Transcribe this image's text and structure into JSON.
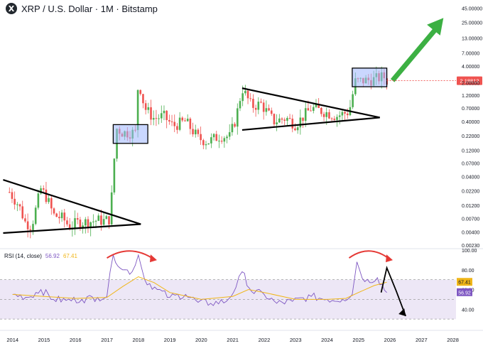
{
  "header": {
    "coin_symbol": "X",
    "title": "XRP / U.S. Dollar · 1M · Bitstamp"
  },
  "rsi_legend": {
    "label": "RSI (14, close)",
    "rsi_value": "56.92",
    "ma_value": "67.41"
  },
  "colors": {
    "up": "#26a69a",
    "up_candle": "#4caf50",
    "down": "#ef5350",
    "rsi_line": "#7e57c2",
    "rsi_ma": "#f0b619",
    "rsi_band": "#ede7f6",
    "box_fill": "#9fb7ff",
    "arrow_green": "#3cb043",
    "annotation_red": "#e53935",
    "current_price_bg": "#ef5350"
  },
  "chart_data": [
    {
      "type": "line",
      "name_hint": "price",
      "log_scale": true,
      "x_tick_labels": [
        "2014",
        "2015",
        "2016",
        "2017",
        "2018",
        "2019",
        "2020",
        "2021",
        "2022",
        "2023",
        "2024",
        "2025",
        "2026",
        "2027",
        "2028"
      ],
      "y_tick_labels": [
        "45.00000",
        "25.00000",
        "13.00000",
        "7.00000",
        "4.00000",
        "2.00000",
        "1.20000",
        "0.70000",
        "0.40000",
        "0.22000",
        "0.12000",
        "0.07000",
        "0.04000",
        "0.02200",
        "0.01200",
        "0.00700",
        "0.00400",
        "0.00230"
      ],
      "y_tick_values": [
        45,
        25,
        13,
        7,
        4,
        2,
        1.2,
        0.7,
        0.4,
        0.22,
        0.12,
        0.07,
        0.04,
        0.022,
        0.012,
        0.007,
        0.004,
        0.0023
      ],
      "current_price_label": "2.18812",
      "current_price": 2.18812,
      "xlim": [
        2013.6,
        2028.1
      ],
      "ylim": [
        0.0021,
        50
      ],
      "monthly_close": [
        {
          "x": 2013.9,
          "y": 0.021
        },
        {
          "x": 2014.2,
          "y": 0.012
        },
        {
          "x": 2014.4,
          "y": 0.006
        },
        {
          "x": 2014.6,
          "y": 0.005
        },
        {
          "x": 2014.9,
          "y": 0.024
        },
        {
          "x": 2015.1,
          "y": 0.016
        },
        {
          "x": 2015.3,
          "y": 0.008
        },
        {
          "x": 2015.6,
          "y": 0.007
        },
        {
          "x": 2015.8,
          "y": 0.005
        },
        {
          "x": 2016.1,
          "y": 0.006
        },
        {
          "x": 2016.4,
          "y": 0.006
        },
        {
          "x": 2016.7,
          "y": 0.0065
        },
        {
          "x": 2016.9,
          "y": 0.0063
        },
        {
          "x": 2017.1,
          "y": 0.0068
        },
        {
          "x": 2017.3,
          "y": 0.3
        },
        {
          "x": 2017.5,
          "y": 0.25
        },
        {
          "x": 2017.9,
          "y": 0.25
        },
        {
          "x": 2018.0,
          "y": 2.3
        },
        {
          "x": 2018.2,
          "y": 0.7
        },
        {
          "x": 2018.5,
          "y": 0.45
        },
        {
          "x": 2018.8,
          "y": 0.5
        },
        {
          "x": 2019.1,
          "y": 0.33
        },
        {
          "x": 2019.5,
          "y": 0.4
        },
        {
          "x": 2019.9,
          "y": 0.2
        },
        {
          "x": 2020.2,
          "y": 0.17
        },
        {
          "x": 2020.6,
          "y": 0.22
        },
        {
          "x": 2020.9,
          "y": 0.21
        },
        {
          "x": 2021.1,
          "y": 0.45
        },
        {
          "x": 2021.3,
          "y": 1.6
        },
        {
          "x": 2021.6,
          "y": 0.75
        },
        {
          "x": 2021.9,
          "y": 0.83
        },
        {
          "x": 2022.3,
          "y": 0.4
        },
        {
          "x": 2022.7,
          "y": 0.46
        },
        {
          "x": 2023.0,
          "y": 0.35
        },
        {
          "x": 2023.5,
          "y": 0.7
        },
        {
          "x": 2023.9,
          "y": 0.6
        },
        {
          "x": 2024.3,
          "y": 0.5
        },
        {
          "x": 2024.7,
          "y": 0.6
        },
        {
          "x": 2024.9,
          "y": 2.1
        },
        {
          "x": 2025.2,
          "y": 2.2
        },
        {
          "x": 2025.5,
          "y": 2.3
        },
        {
          "x": 2025.8,
          "y": 2.6
        },
        {
          "x": 2025.9,
          "y": 2.18812
        }
      ],
      "patterns": [
        {
          "kind": "triangle",
          "upper": [
            [
              2013.7,
              0.035
            ],
            [
              2017.4,
              0.0055
            ]
          ],
          "lower": [
            [
              2013.7,
              0.0038
            ],
            [
              2017.4,
              0.0055
            ]
          ]
        },
        {
          "kind": "triangle",
          "upper": [
            [
              2021.3,
              1.6
            ],
            [
              2025.0,
              0.47
            ]
          ],
          "lower": [
            [
              2021.3,
              0.28
            ],
            [
              2025.0,
              0.47
            ]
          ]
        }
      ],
      "highlight_boxes": [
        {
          "x": [
            2017.2,
            2018.3
          ],
          "y": [
            0.16,
            0.35
          ]
        },
        {
          "x": [
            2024.8,
            2025.9
          ],
          "y": [
            1.7,
            3.7
          ]
        }
      ],
      "projection_arrow": {
        "from": [
          2025.9,
          2.2
        ],
        "to": [
          2027.7,
          30
        ]
      }
    },
    {
      "type": "line",
      "name_hint": "rsi",
      "y_tick_labels": [
        "100.00",
        "80.00",
        "60.00",
        "40.00"
      ],
      "y_tick_values": [
        100,
        80,
        60,
        40
      ],
      "band": [
        30,
        70
      ],
      "rsi_value": 56.92,
      "ma_value": 67.41,
      "rsi": [
        {
          "x": 2014.0,
          "y": 55
        },
        {
          "x": 2014.5,
          "y": 52
        },
        {
          "x": 2014.9,
          "y": 60
        },
        {
          "x": 2015.3,
          "y": 50
        },
        {
          "x": 2015.7,
          "y": 49
        },
        {
          "x": 2016.2,
          "y": 50
        },
        {
          "x": 2016.7,
          "y": 52
        },
        {
          "x": 2017.0,
          "y": 53
        },
        {
          "x": 2017.2,
          "y": 95
        },
        {
          "x": 2017.5,
          "y": 80
        },
        {
          "x": 2017.8,
          "y": 78
        },
        {
          "x": 2018.0,
          "y": 95
        },
        {
          "x": 2018.2,
          "y": 70
        },
        {
          "x": 2018.6,
          "y": 60
        },
        {
          "x": 2019.0,
          "y": 52
        },
        {
          "x": 2019.5,
          "y": 55
        },
        {
          "x": 2019.9,
          "y": 47
        },
        {
          "x": 2020.3,
          "y": 46
        },
        {
          "x": 2020.8,
          "y": 48
        },
        {
          "x": 2021.1,
          "y": 62
        },
        {
          "x": 2021.3,
          "y": 78
        },
        {
          "x": 2021.6,
          "y": 58
        },
        {
          "x": 2022.0,
          "y": 55
        },
        {
          "x": 2022.4,
          "y": 46
        },
        {
          "x": 2022.9,
          "y": 48
        },
        {
          "x": 2023.5,
          "y": 53
        },
        {
          "x": 2024.0,
          "y": 50
        },
        {
          "x": 2024.5,
          "y": 50
        },
        {
          "x": 2024.8,
          "y": 55
        },
        {
          "x": 2024.95,
          "y": 88
        },
        {
          "x": 2025.2,
          "y": 68
        },
        {
          "x": 2025.6,
          "y": 72
        },
        {
          "x": 2025.9,
          "y": 56.92
        }
      ],
      "rsi_ma": [
        {
          "x": 2014.0,
          "y": 55
        },
        {
          "x": 2015.0,
          "y": 53
        },
        {
          "x": 2016.0,
          "y": 51
        },
        {
          "x": 2017.0,
          "y": 52
        },
        {
          "x": 2017.5,
          "y": 63
        },
        {
          "x": 2018.0,
          "y": 73
        },
        {
          "x": 2018.5,
          "y": 67
        },
        {
          "x": 2019.0,
          "y": 57
        },
        {
          "x": 2020.0,
          "y": 50
        },
        {
          "x": 2021.0,
          "y": 53
        },
        {
          "x": 2021.5,
          "y": 60
        },
        {
          "x": 2022.0,
          "y": 57
        },
        {
          "x": 2023.0,
          "y": 50
        },
        {
          "x": 2024.0,
          "y": 50
        },
        {
          "x": 2024.6,
          "y": 51
        },
        {
          "x": 2025.0,
          "y": 57
        },
        {
          "x": 2025.5,
          "y": 64
        },
        {
          "x": 2025.9,
          "y": 67.41
        }
      ],
      "arcs": [
        {
          "x": [
            2017.0,
            2018.5
          ]
        },
        {
          "x": [
            2024.7,
            2026.0
          ]
        }
      ],
      "zigzag": [
        [
          2025.9,
          82
        ],
        [
          2026.2,
          57
        ],
        [
          2026.5,
          33
        ]
      ]
    }
  ]
}
